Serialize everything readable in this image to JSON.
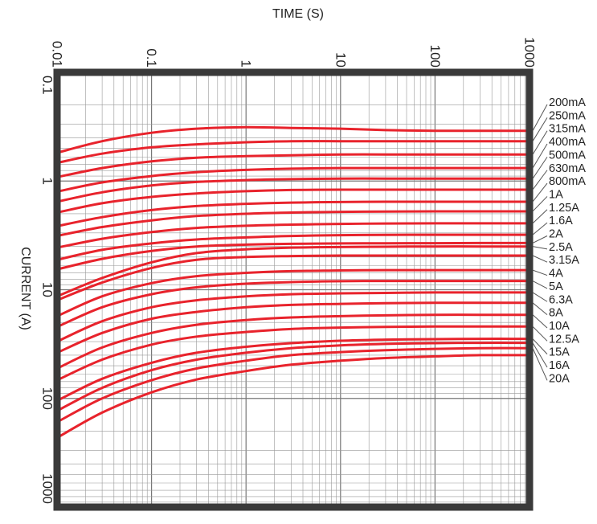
{
  "chart_data": {
    "type": "line",
    "title": "",
    "xlabel": "TIME (S)",
    "ylabel": "CURRENT (A)",
    "x_scale": "log",
    "y_scale": "log",
    "y_inverted": true,
    "xlim": [
      0.01,
      1000
    ],
    "ylim": [
      0.1,
      1000
    ],
    "grid": true,
    "x_ticks": [
      {
        "value": 0.01,
        "label": "0.01"
      },
      {
        "value": 0.1,
        "label": "0.1"
      },
      {
        "value": 1,
        "label": "1"
      },
      {
        "value": 10,
        "label": "10"
      },
      {
        "value": 100,
        "label": "100"
      },
      {
        "value": 1000,
        "label": "1000"
      }
    ],
    "y_ticks": [
      {
        "value": 0.1,
        "label": "0.1"
      },
      {
        "value": 1,
        "label": "1"
      },
      {
        "value": 10,
        "label": "10"
      },
      {
        "value": 100,
        "label": "100"
      },
      {
        "value": 1000,
        "label": "1000"
      }
    ],
    "x": [
      0.01,
      0.03,
      0.1,
      0.3,
      1,
      3,
      10,
      30,
      100,
      300,
      1000
    ],
    "series": [
      {
        "name": "200mA",
        "values": [
          0.55,
          0.43,
          0.36,
          0.33,
          0.32,
          0.325,
          0.33,
          0.34,
          0.345,
          0.345,
          0.345
        ]
      },
      {
        "name": "250mA",
        "values": [
          0.68,
          0.56,
          0.49,
          0.46,
          0.44,
          0.43,
          0.43,
          0.43,
          0.43,
          0.43,
          0.43
        ]
      },
      {
        "name": "315mA",
        "values": [
          0.92,
          0.76,
          0.66,
          0.61,
          0.59,
          0.58,
          0.57,
          0.57,
          0.57,
          0.57,
          0.57
        ]
      },
      {
        "name": "400mA",
        "values": [
          1.25,
          1.03,
          0.9,
          0.83,
          0.79,
          0.77,
          0.76,
          0.76,
          0.76,
          0.76,
          0.76
        ]
      },
      {
        "name": "500mA",
        "values": [
          1.55,
          1.27,
          1.1,
          1.02,
          0.98,
          0.96,
          0.95,
          0.95,
          0.95,
          0.95,
          0.95
        ]
      },
      {
        "name": "630mA",
        "values": [
          1.95,
          1.6,
          1.4,
          1.3,
          1.24,
          1.21,
          1.2,
          1.2,
          1.2,
          1.2,
          1.2
        ]
      },
      {
        "name": "800mA",
        "values": [
          2.6,
          2.15,
          1.85,
          1.7,
          1.62,
          1.58,
          1.56,
          1.55,
          1.55,
          1.55,
          1.55
        ]
      },
      {
        "name": "1A",
        "values": [
          3.2,
          2.65,
          2.3,
          2.1,
          2.0,
          1.95,
          1.92,
          1.91,
          1.9,
          1.9,
          1.9
        ]
      },
      {
        "name": "1.25A",
        "values": [
          4.1,
          3.4,
          2.95,
          2.7,
          2.58,
          2.52,
          2.48,
          2.46,
          2.45,
          2.45,
          2.45
        ]
      },
      {
        "name": "1.6A",
        "values": [
          5.3,
          4.3,
          3.75,
          3.45,
          3.3,
          3.2,
          3.15,
          3.13,
          3.12,
          3.12,
          3.12
        ]
      },
      {
        "name": "2A",
        "values": [
          6.5,
          5.2,
          4.4,
          4.0,
          3.85,
          3.78,
          3.75,
          3.74,
          3.73,
          3.72,
          3.72
        ]
      },
      {
        "name": "2.5A",
        "values": [
          11.5,
          7.8,
          5.6,
          4.6,
          4.25,
          4.1,
          4.05,
          4.02,
          4.0,
          4.0,
          4.0
        ]
      },
      {
        "name": "3.15A",
        "values": [
          12.5,
          8.6,
          6.3,
          5.3,
          5.0,
          4.9,
          4.85,
          4.85,
          4.85,
          4.85,
          4.85
        ]
      },
      {
        "name": "4A",
        "values": [
          17.5,
          11.5,
          8.7,
          7.5,
          7.0,
          6.75,
          6.65,
          6.6,
          6.6,
          6.6,
          6.6
        ]
      },
      {
        "name": "5A",
        "values": [
          22.0,
          14.5,
          11.0,
          9.5,
          8.8,
          8.5,
          8.35,
          8.3,
          8.3,
          8.3,
          8.3
        ]
      },
      {
        "name": "6.3A",
        "values": [
          30.0,
          19.5,
          14.5,
          12.5,
          11.5,
          11.0,
          10.8,
          10.7,
          10.6,
          10.6,
          10.6
        ]
      },
      {
        "name": "8A",
        "values": [
          38.0,
          25.0,
          18.5,
          16.0,
          14.5,
          13.8,
          13.5,
          13.3,
          13.2,
          13.2,
          13.2
        ]
      },
      {
        "name": "10A",
        "values": [
          53.0,
          34.0,
          25.0,
          21.0,
          19.0,
          18.0,
          17.5,
          17.2,
          17.0,
          17.0,
          17.0
        ]
      },
      {
        "name": "12.5A",
        "values": [
          68.0,
          44.0,
          32.0,
          27.0,
          24.5,
          23.0,
          22.3,
          22.0,
          21.8,
          21.8,
          21.8
        ]
      },
      {
        "name": "15A",
        "values": [
          105.0,
          66.0,
          47.0,
          38.0,
          33.5,
          31.0,
          29.5,
          28.8,
          28.5,
          28.3,
          28.3
        ]
      },
      {
        "name": "16A",
        "values": [
          130.0,
          80.0,
          55.0,
          44.0,
          38.0,
          34.5,
          32.5,
          31.5,
          31.0,
          30.8,
          30.8
        ]
      },
      {
        "name": "20A",
        "values": [
          165.0,
          100.0,
          68.0,
          53.0,
          45.0,
          40.0,
          37.5,
          36.0,
          35.0,
          34.5,
          34.5
        ]
      },
      {
        "name": "",
        "values": [
          230.0,
          135.0,
          88.0,
          67.0,
          56.0,
          49.0,
          45.0,
          42.5,
          41.0,
          40.0,
          40.0
        ]
      }
    ],
    "colors": {
      "curve": "#e8232c",
      "grid": "#999999",
      "frame": "#3a3a3a",
      "text": "#222222"
    }
  }
}
